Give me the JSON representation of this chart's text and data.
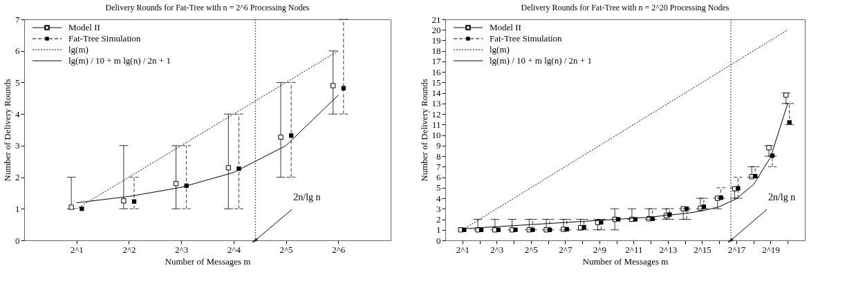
{
  "chart_data": [
    {
      "type": "line",
      "title": "Delivery Rounds for Fat-Tree with n = 2^6 Processing Nodes",
      "xlabel": "Number of Messages m",
      "ylabel": "Number of Delivery Rounds",
      "log": "x",
      "xlim": [
        1,
        128
      ],
      "xticks": [
        {
          "value": 2,
          "label": "2^1"
        },
        {
          "value": 4,
          "label": "2^2"
        },
        {
          "value": 8,
          "label": "2^3"
        },
        {
          "value": 16,
          "label": "2^4"
        },
        {
          "value": 32,
          "label": "2^5"
        },
        {
          "value": 64,
          "label": "2^6"
        }
      ],
      "ylim": [
        0,
        7
      ],
      "yticks": [
        0,
        1,
        2,
        3,
        4,
        5,
        6,
        7
      ],
      "grid": false,
      "legend": "top left",
      "series": [
        {
          "name": "Model II",
          "type": "scatter",
          "marker": "square",
          "line_style": "solid",
          "color": "#000000",
          "x": [
            1.866,
            3.732,
            7.464,
            14.93,
            29.86,
            59.71
          ],
          "values": [
            1.05,
            1.25,
            1.8,
            2.3,
            3.27,
            4.9
          ],
          "errors": [
            [
              1,
              2
            ],
            [
              1,
              3
            ],
            [
              1,
              3
            ],
            [
              1,
              4
            ],
            [
              2,
              5
            ],
            [
              4,
              6
            ]
          ]
        },
        {
          "name": "Fat-Tree Simulation",
          "type": "scatter",
          "marker": "square",
          "line_style": "dashed",
          "color": "#000000",
          "x": [
            2.144,
            4.287,
            8.574,
            17.15,
            34.3,
            68.59
          ],
          "values": [
            1.0,
            1.23,
            1.73,
            2.27,
            3.32,
            4.82
          ],
          "errors": [
            null,
            [
              1,
              2
            ],
            [
              1,
              3
            ],
            [
              1,
              4
            ],
            [
              2,
              5
            ],
            [
              4,
              7
            ]
          ]
        },
        {
          "name": "lg(m)",
          "marker": "none",
          "line_style": "dotted",
          "color": "#000000",
          "x": [
            2,
            4,
            8,
            16,
            32,
            64
          ],
          "values": [
            1,
            2,
            3,
            4,
            5,
            6
          ]
        },
        {
          "name": "lg(m) / 10 + m lg(n) / 2n + 1",
          "marker": "none",
          "line_style": "solid",
          "color": "#000000",
          "x": [
            2,
            4,
            8,
            16,
            32,
            64
          ],
          "values": [
            1.19,
            1.39,
            1.68,
            2.15,
            3.0,
            4.6
          ]
        }
      ],
      "ref_lines": [
        {
          "axis": "x",
          "value": 21.33,
          "line_style": "dotted"
        }
      ],
      "annotations": [
        {
          "text": "2n/lg n",
          "x": 21.33,
          "y": 0
        }
      ]
    },
    {
      "type": "line",
      "title": "Delivery Rounds for Fat-Tree with n = 2^20 Processing Nodes",
      "xlabel": "Number of Messages m",
      "ylabel": "Number of Delivery Rounds",
      "log": "x",
      "xlim": [
        1,
        2097152
      ],
      "xticks": [
        {
          "value": 2,
          "label": "2^1"
        },
        {
          "value": 4,
          "label": null
        },
        {
          "value": 8,
          "label": "2^3"
        },
        {
          "value": 16,
          "label": null
        },
        {
          "value": 32,
          "label": "2^5"
        },
        {
          "value": 64,
          "label": null
        },
        {
          "value": 128,
          "label": "2^7"
        },
        {
          "value": 256,
          "label": null
        },
        {
          "value": 512,
          "label": "2^9"
        },
        {
          "value": 1024,
          "label": null
        },
        {
          "value": 2048,
          "label": "2^11"
        },
        {
          "value": 4096,
          "label": null
        },
        {
          "value": 8192,
          "label": "2^13"
        },
        {
          "value": 16384,
          "label": null
        },
        {
          "value": 32768,
          "label": "2^15"
        },
        {
          "value": 65536,
          "label": null
        },
        {
          "value": 131072,
          "label": "2^17"
        },
        {
          "value": 262144,
          "label": null
        },
        {
          "value": 524288,
          "label": "2^19"
        },
        {
          "value": 1048576,
          "label": null
        }
      ],
      "ylim": [
        0,
        21
      ],
      "yticks": [
        0,
        1,
        2,
        3,
        4,
        5,
        6,
        7,
        8,
        9,
        10,
        11,
        12,
        13,
        14,
        15,
        16,
        17,
        18,
        19,
        20,
        21
      ],
      "grid": false,
      "legend": "top left",
      "series": [
        {
          "name": "Model II",
          "type": "scatter",
          "marker": "square",
          "line_style": "solid",
          "color": "#000000",
          "x": [
            1.866,
            3.732,
            7.464,
            14.93,
            29.86,
            59.71,
            119.4,
            238.9,
            477.7,
            955.4,
            1911,
            3822,
            7643,
            15287,
            30573,
            61147,
            122295,
            244589,
            489178,
            978356
          ],
          "values": [
            1.0,
            1.0,
            1.0,
            1.0,
            1.0,
            1.0,
            1.05,
            1.2,
            1.7,
            2.0,
            2.0,
            2.05,
            2.35,
            3.0,
            3.05,
            4.0,
            4.9,
            6.05,
            8.8,
            13.8
          ],
          "errors": [
            null,
            [
              1,
              2
            ],
            [
              1,
              2
            ],
            [
              1,
              2
            ],
            [
              1,
              2
            ],
            [
              1,
              2
            ],
            [
              1,
              2
            ],
            [
              1,
              2
            ],
            [
              1,
              2
            ],
            [
              1,
              3
            ],
            [
              2,
              3
            ],
            [
              2,
              3
            ],
            [
              2,
              3
            ],
            [
              2,
              3
            ],
            [
              3,
              4
            ],
            [
              3,
              4
            ],
            [
              4,
              5
            ],
            [
              6,
              7
            ],
            [
              8,
              9
            ],
            [
              13,
              14
            ]
          ]
        },
        {
          "name": "Fat-Tree Simulation",
          "type": "scatter",
          "marker": "square",
          "line_style": "dashed",
          "color": "#000000",
          "x": [
            2.144,
            4.287,
            8.574,
            17.15,
            34.3,
            68.59,
            137.2,
            274.4,
            548.8,
            1097,
            2195,
            4390,
            8780,
            17560,
            35120,
            70240,
            140479,
            280959,
            561918,
            1123836
          ],
          "values": [
            1.0,
            1.0,
            1.0,
            1.0,
            1.0,
            1.0,
            1.05,
            1.25,
            1.7,
            2.0,
            2.0,
            2.05,
            2.45,
            3.0,
            3.2,
            4.05,
            4.95,
            6.1,
            8.05,
            11.2
          ],
          "errors": [
            null,
            null,
            null,
            null,
            [
              1,
              2
            ],
            [
              1,
              2
            ],
            [
              1,
              2
            ],
            [
              1,
              2
            ],
            [
              1,
              2
            ],
            null,
            null,
            [
              2,
              3
            ],
            [
              2,
              3
            ],
            [
              2,
              3
            ],
            [
              3,
              4
            ],
            [
              4,
              5
            ],
            [
              4,
              6
            ],
            [
              6,
              7
            ],
            [
              7,
              8
            ],
            [
              11,
              13
            ]
          ]
        },
        {
          "name": "lg(m)",
          "marker": "none",
          "line_style": "dotted",
          "color": "#000000",
          "x": [
            2,
            1048576
          ],
          "values": [
            1,
            20
          ]
        },
        {
          "name": "lg(m) / 10 + m lg(n) / 2n + 1",
          "marker": "none",
          "line_style": "solid",
          "color": "#000000",
          "x": [
            2,
            4,
            8,
            16,
            32,
            64,
            128,
            256,
            512,
            1024,
            2048,
            4096,
            8192,
            16384,
            32768,
            65536,
            131072,
            262144,
            524288,
            1048576
          ],
          "values": [
            1.1,
            1.2,
            1.3,
            1.4,
            1.5,
            1.6,
            1.7,
            1.8,
            1.9,
            2.0,
            2.1,
            2.2,
            2.4,
            2.55,
            2.8,
            3.2,
            3.95,
            5.3,
            7.9,
            13.0
          ]
        }
      ],
      "ref_lines": [
        {
          "axis": "x",
          "value": 104858,
          "line_style": "dotted"
        }
      ],
      "annotations": [
        {
          "text": "2n/lg n",
          "x": 104858,
          "y": 0
        }
      ]
    }
  ]
}
